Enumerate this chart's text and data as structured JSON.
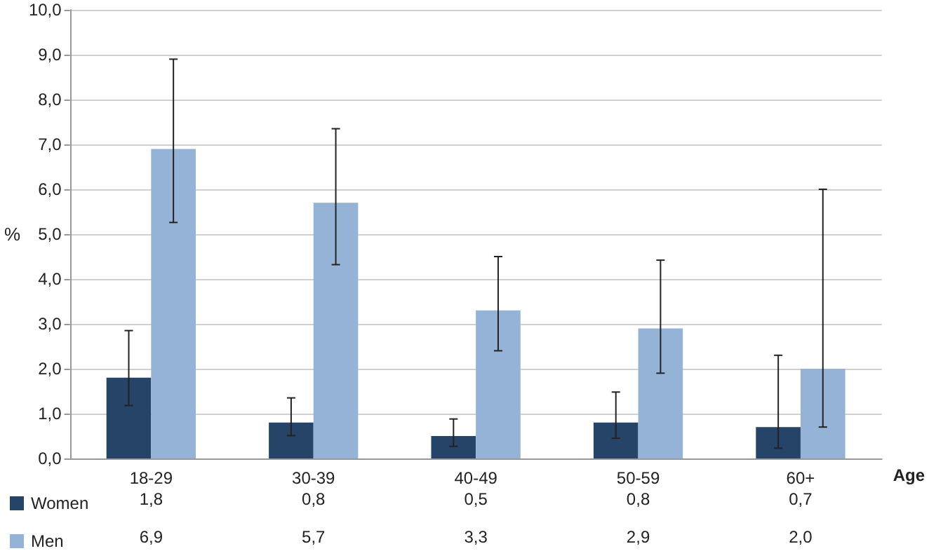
{
  "chart_data": {
    "type": "bar",
    "xlabel": "Age",
    "ylabel": "%",
    "categories": [
      "18-29",
      "30-39",
      "40-49",
      "50-59",
      "60+"
    ],
    "series": [
      {
        "name": "Women",
        "color": "#264468",
        "values": [
          1.8,
          0.8,
          0.5,
          0.8,
          0.7
        ],
        "value_labels": [
          "1,8",
          "0,8",
          "0,5",
          "0,8",
          "0,7"
        ],
        "errors": [
          [
            1.18,
            2.85
          ],
          [
            0.51,
            1.35
          ],
          [
            0.27,
            0.88
          ],
          [
            0.45,
            1.48
          ],
          [
            0.23,
            2.3
          ]
        ]
      },
      {
        "name": "Men",
        "color": "#95b3d7",
        "values": [
          6.9,
          5.7,
          3.3,
          2.9,
          2.0
        ],
        "value_labels": [
          "6,9",
          "5,7",
          "3,3",
          "2,9",
          "2,0"
        ],
        "errors": [
          [
            5.26,
            8.9
          ],
          [
            4.32,
            7.35
          ],
          [
            2.4,
            4.5
          ],
          [
            1.9,
            4.42
          ],
          [
            0.7,
            6.0
          ]
        ]
      }
    ],
    "ylim": [
      0,
      10
    ],
    "yticks": [
      {
        "value": 0,
        "label": "0,0"
      },
      {
        "value": 1,
        "label": "1,0"
      },
      {
        "value": 2,
        "label": "2,0"
      },
      {
        "value": 3,
        "label": "3,0"
      },
      {
        "value": 4,
        "label": "4,0"
      },
      {
        "value": 5,
        "label": "5,0"
      },
      {
        "value": 6,
        "label": "6,0"
      },
      {
        "value": 7,
        "label": "7,0"
      },
      {
        "value": 8,
        "label": "8,0"
      },
      {
        "value": 9,
        "label": "9,0"
      },
      {
        "value": 10,
        "label": "10,0"
      }
    ],
    "grid": "y",
    "legend": "bottom left"
  }
}
